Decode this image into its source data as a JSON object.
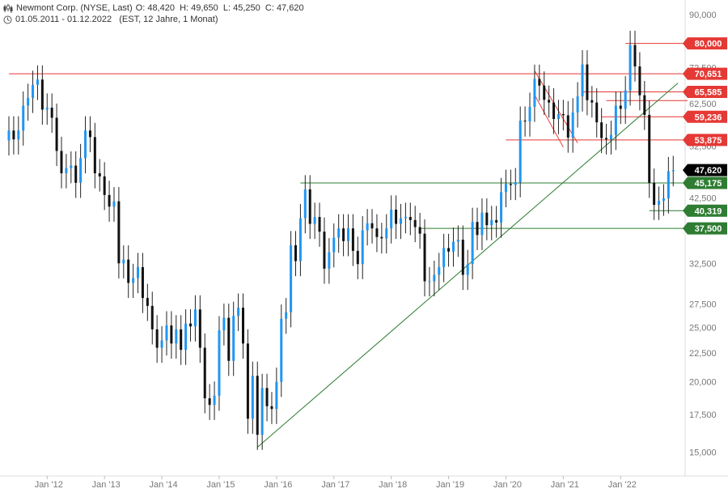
{
  "header": {
    "title": "Newmont Corp. (NYSE, Last)",
    "ohlc": "O: 48,420  H: 49,650  L: 45,250  C: 47,620",
    "period": "01.05.2011 - 01.12.2022   (EST, 12 Jahre, 1 Monat)"
  },
  "colors": {
    "up": "#2196f3",
    "down": "#111111",
    "resistance": "#e53935",
    "support": "#2e7d32",
    "last": "#000000"
  },
  "chart_data": {
    "type": "candlestick",
    "y_scale": "log",
    "ylim": [
      14200,
      94000
    ],
    "y_ticks": [
      {
        "v": 15000,
        "label": "15,000"
      },
      {
        "v": 17500,
        "label": "17,500"
      },
      {
        "v": 20000,
        "label": "20,000"
      },
      {
        "v": 22500,
        "label": "22,500"
      },
      {
        "v": 25000,
        "label": "25,000"
      },
      {
        "v": 27500,
        "label": "27,500"
      },
      {
        "v": 32500,
        "label": "32,500"
      },
      {
        "v": 42500,
        "label": "42,500"
      },
      {
        "v": 52500,
        "label": "52,500"
      },
      {
        "v": 62500,
        "label": "62,500"
      },
      {
        "v": 72500,
        "label": "72,500"
      },
      {
        "v": 90000,
        "label": "90,000"
      }
    ],
    "x_ticks": [
      {
        "date": "2012-01",
        "label": "Jan '12"
      },
      {
        "date": "2013-01",
        "label": "Jan '13"
      },
      {
        "date": "2014-01",
        "label": "Jan '14"
      },
      {
        "date": "2015-01",
        "label": "Jan '15"
      },
      {
        "date": "2016-01",
        "label": "Jan '16"
      },
      {
        "date": "2017-01",
        "label": "Jan '17"
      },
      {
        "date": "2018-01",
        "label": "Jan '18"
      },
      {
        "date": "2019-01",
        "label": "Jan '19"
      },
      {
        "date": "2020-01",
        "label": "Jan '20"
      },
      {
        "date": "2021-01",
        "label": "Jan '21"
      },
      {
        "date": "2022-01",
        "label": "Jan '22"
      }
    ],
    "closes": [
      {
        "date": "2011-05",
        "v": 56000
      },
      {
        "date": "2011-06",
        "v": 54000
      },
      {
        "date": "2011-07",
        "v": 56000
      },
      {
        "date": "2011-08",
        "v": 62000
      },
      {
        "date": "2011-09",
        "v": 64000
      },
      {
        "date": "2011-10",
        "v": 67500
      },
      {
        "date": "2011-11",
        "v": 69000
      },
      {
        "date": "2011-12",
        "v": 61000
      },
      {
        "date": "2012-01",
        "v": 61500
      },
      {
        "date": "2012-02",
        "v": 59000
      },
      {
        "date": "2012-03",
        "v": 51500
      },
      {
        "date": "2012-04",
        "v": 47000
      },
      {
        "date": "2012-05",
        "v": 48000
      },
      {
        "date": "2012-06",
        "v": 48500
      },
      {
        "date": "2012-07",
        "v": 45200
      },
      {
        "date": "2012-08",
        "v": 50000
      },
      {
        "date": "2012-09",
        "v": 56000
      },
      {
        "date": "2012-10",
        "v": 54500
      },
      {
        "date": "2012-11",
        "v": 47000
      },
      {
        "date": "2012-12",
        "v": 46400
      },
      {
        "date": "2013-01",
        "v": 43000
      },
      {
        "date": "2013-02",
        "v": 41000
      },
      {
        "date": "2013-03",
        "v": 41900
      },
      {
        "date": "2013-04",
        "v": 32500
      },
      {
        "date": "2013-05",
        "v": 33000
      },
      {
        "date": "2013-06",
        "v": 30000
      },
      {
        "date": "2013-07",
        "v": 30600
      },
      {
        "date": "2013-08",
        "v": 32000
      },
      {
        "date": "2013-09",
        "v": 28200
      },
      {
        "date": "2013-10",
        "v": 27300
      },
      {
        "date": "2013-11",
        "v": 24800
      },
      {
        "date": "2013-12",
        "v": 23000
      },
      {
        "date": "2014-01",
        "v": 23700
      },
      {
        "date": "2014-02",
        "v": 25200
      },
      {
        "date": "2014-03",
        "v": 23400
      },
      {
        "date": "2014-04",
        "v": 24800
      },
      {
        "date": "2014-05",
        "v": 22800
      },
      {
        "date": "2014-06",
        "v": 25400
      },
      {
        "date": "2014-07",
        "v": 25100
      },
      {
        "date": "2014-08",
        "v": 26900
      },
      {
        "date": "2014-09",
        "v": 23000
      },
      {
        "date": "2014-10",
        "v": 18700
      },
      {
        "date": "2014-11",
        "v": 18200
      },
      {
        "date": "2014-12",
        "v": 18900
      },
      {
        "date": "2015-01",
        "v": 24700
      },
      {
        "date": "2015-02",
        "v": 26000
      },
      {
        "date": "2015-03",
        "v": 21800
      },
      {
        "date": "2015-04",
        "v": 26200
      },
      {
        "date": "2015-05",
        "v": 27100
      },
      {
        "date": "2015-06",
        "v": 23400
      },
      {
        "date": "2015-07",
        "v": 17200
      },
      {
        "date": "2015-08",
        "v": 20500
      },
      {
        "date": "2015-09",
        "v": 16100
      },
      {
        "date": "2015-10",
        "v": 19500
      },
      {
        "date": "2015-11",
        "v": 18100
      },
      {
        "date": "2015-12",
        "v": 17900
      },
      {
        "date": "2016-01",
        "v": 20000
      },
      {
        "date": "2016-02",
        "v": 25900
      },
      {
        "date": "2016-03",
        "v": 26600
      },
      {
        "date": "2016-04",
        "v": 35000
      },
      {
        "date": "2016-05",
        "v": 32800
      },
      {
        "date": "2016-06",
        "v": 39100
      },
      {
        "date": "2016-07",
        "v": 44000
      },
      {
        "date": "2016-08",
        "v": 38200
      },
      {
        "date": "2016-09",
        "v": 39300
      },
      {
        "date": "2016-10",
        "v": 37000
      },
      {
        "date": "2016-11",
        "v": 31800
      },
      {
        "date": "2016-12",
        "v": 34000
      },
      {
        "date": "2017-01",
        "v": 36100
      },
      {
        "date": "2017-02",
        "v": 37500
      },
      {
        "date": "2017-03",
        "v": 35600
      },
      {
        "date": "2017-04",
        "v": 37500
      },
      {
        "date": "2017-05",
        "v": 34200
      },
      {
        "date": "2017-06",
        "v": 32400
      },
      {
        "date": "2017-07",
        "v": 37200
      },
      {
        "date": "2017-08",
        "v": 38300
      },
      {
        "date": "2017-09",
        "v": 37500
      },
      {
        "date": "2017-10",
        "v": 36200
      },
      {
        "date": "2017-11",
        "v": 36000
      },
      {
        "date": "2017-12",
        "v": 37500
      },
      {
        "date": "2018-01",
        "v": 40500
      },
      {
        "date": "2018-02",
        "v": 38200
      },
      {
        "date": "2018-03",
        "v": 39100
      },
      {
        "date": "2018-04",
        "v": 39300
      },
      {
        "date": "2018-05",
        "v": 38800
      },
      {
        "date": "2018-06",
        "v": 37700
      },
      {
        "date": "2018-07",
        "v": 36700
      },
      {
        "date": "2018-08",
        "v": 30200
      },
      {
        "date": "2018-09",
        "v": 30200
      },
      {
        "date": "2018-10",
        "v": 31000
      },
      {
        "date": "2018-11",
        "v": 32000
      },
      {
        "date": "2018-12",
        "v": 34600
      },
      {
        "date": "2019-01",
        "v": 34100
      },
      {
        "date": "2019-02",
        "v": 35500
      },
      {
        "date": "2019-03",
        "v": 35800
      },
      {
        "date": "2019-04",
        "v": 31000
      },
      {
        "date": "2019-05",
        "v": 32400
      },
      {
        "date": "2019-06",
        "v": 38500
      },
      {
        "date": "2019-07",
        "v": 36500
      },
      {
        "date": "2019-08",
        "v": 40000
      },
      {
        "date": "2019-09",
        "v": 38000
      },
      {
        "date": "2019-10",
        "v": 38800
      },
      {
        "date": "2019-11",
        "v": 38400
      },
      {
        "date": "2019-12",
        "v": 43500
      },
      {
        "date": "2020-01",
        "v": 45000
      },
      {
        "date": "2020-02",
        "v": 44800
      },
      {
        "date": "2020-03",
        "v": 45300
      },
      {
        "date": "2020-04",
        "v": 58300
      },
      {
        "date": "2020-05",
        "v": 58100
      },
      {
        "date": "2020-06",
        "v": 61700
      },
      {
        "date": "2020-07",
        "v": 69200
      },
      {
        "date": "2020-08",
        "v": 67300
      },
      {
        "date": "2020-09",
        "v": 63500
      },
      {
        "date": "2020-10",
        "v": 62800
      },
      {
        "date": "2020-11",
        "v": 58700
      },
      {
        "date": "2020-12",
        "v": 59900
      },
      {
        "date": "2021-01",
        "v": 59600
      },
      {
        "date": "2021-02",
        "v": 54400
      },
      {
        "date": "2021-03",
        "v": 60300
      },
      {
        "date": "2021-04",
        "v": 64400
      },
      {
        "date": "2021-05",
        "v": 73400
      },
      {
        "date": "2021-06",
        "v": 63400
      },
      {
        "date": "2021-07",
        "v": 62800
      },
      {
        "date": "2021-08",
        "v": 57900
      },
      {
        "date": "2021-09",
        "v": 54300
      },
      {
        "date": "2021-10",
        "v": 54000
      },
      {
        "date": "2021-11",
        "v": 55000
      },
      {
        "date": "2021-12",
        "v": 62000
      },
      {
        "date": "2022-01",
        "v": 61200
      },
      {
        "date": "2022-02",
        "v": 66000
      },
      {
        "date": "2022-03",
        "v": 79500
      },
      {
        "date": "2022-04",
        "v": 72800
      },
      {
        "date": "2022-05",
        "v": 64700
      },
      {
        "date": "2022-06",
        "v": 59700
      },
      {
        "date": "2022-07",
        "v": 45200
      },
      {
        "date": "2022-08",
        "v": 41300
      },
      {
        "date": "2022-09",
        "v": 42000
      },
      {
        "date": "2022-10",
        "v": 42400
      },
      {
        "date": "2022-11",
        "v": 47400
      },
      {
        "date": "2022-12",
        "v": 47620
      }
    ],
    "horizontal_levels": [
      {
        "label": "80,000",
        "v": 80000,
        "role": "resistance",
        "from": "2022-02"
      },
      {
        "label": "70,651",
        "v": 70651,
        "role": "resistance",
        "from": "2011-05"
      },
      {
        "label": "65,585",
        "v": 65585,
        "role": "resistance",
        "from": "2021-05"
      },
      {
        "label": "",
        "v": 63300,
        "role": "resistance",
        "from": "2021-10"
      },
      {
        "label": "59,236",
        "v": 59236,
        "role": "resistance",
        "from": "2021-09"
      },
      {
        "label": "53,875",
        "v": 53875,
        "role": "resistance",
        "from": "2020-01"
      },
      {
        "label": "45,175",
        "v": 45175,
        "role": "support",
        "from": "2016-06"
      },
      {
        "label": "40,319",
        "v": 40319,
        "role": "support",
        "from": "2022-07"
      },
      {
        "label": "37,500",
        "v": 37500,
        "role": "support",
        "from": "2018-07"
      }
    ],
    "last_price": {
      "label": "47,620",
      "v": 47620
    },
    "trend_lines": [
      {
        "role": "support",
        "from": {
          "date": "2015-09",
          "v": 15300
        },
        "to": {
          "date": "2023-01",
          "v": 68000
        }
      },
      {
        "role": "resistance",
        "from": {
          "date": "2020-07",
          "v": 71500
        },
        "to": {
          "date": "2021-04",
          "v": 53200
        }
      },
      {
        "role": "resistance",
        "from": {
          "date": "2020-07",
          "v": 64800
        },
        "to": {
          "date": "2021-01",
          "v": 52300
        }
      }
    ]
  }
}
